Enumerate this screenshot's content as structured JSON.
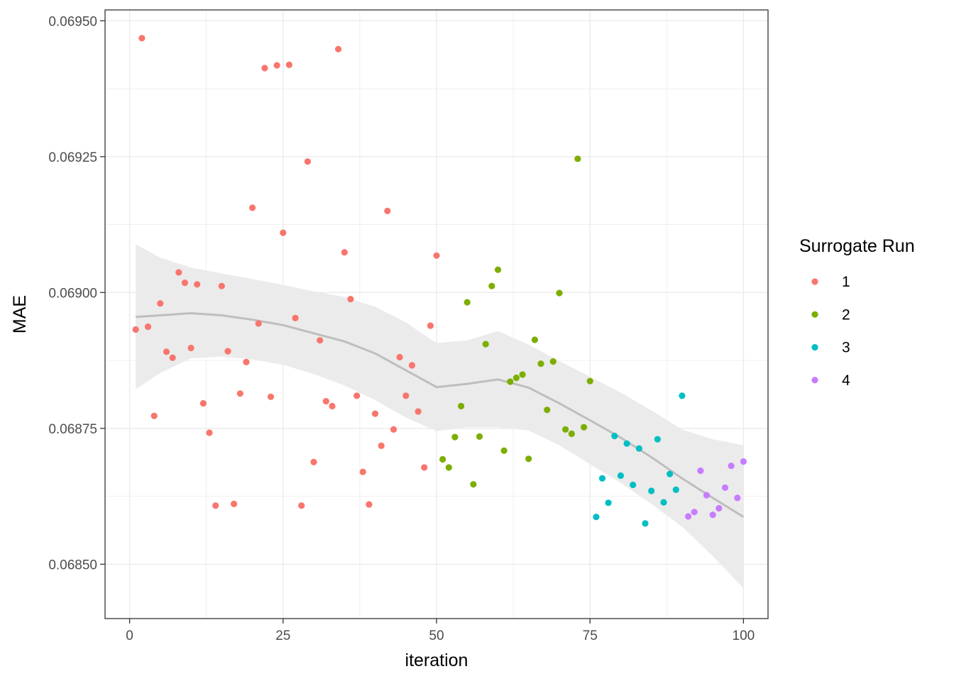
{
  "chart_data": {
    "type": "scatter",
    "xlabel": "iteration",
    "ylabel": "MAE",
    "xlim": [
      -4,
      104
    ],
    "ylim": [
      0.0684,
      0.06952
    ],
    "x_ticks": [
      0,
      25,
      50,
      75,
      100
    ],
    "x_tick_labels": [
      "0",
      "25",
      "50",
      "75",
      "100"
    ],
    "y_ticks": [
      0.0685,
      0.06875,
      0.069,
      0.06925,
      0.0695
    ],
    "y_tick_labels": [
      "0.06850",
      "0.06875",
      "0.06900",
      "0.06925",
      "0.06950"
    ],
    "grid": true,
    "legend": {
      "title": "Surrogate Run",
      "position": "right",
      "entries": [
        {
          "label": "1",
          "color": "#F8766D"
        },
        {
          "label": "2",
          "color": "#7CAE00"
        },
        {
          "label": "3",
          "color": "#00BFC4"
        },
        {
          "label": "4",
          "color": "#C77CFF"
        }
      ]
    },
    "series": [
      {
        "name": "1",
        "color": "#F8766D",
        "points": [
          [
            1,
            0.068932
          ],
          [
            2,
            0.069468
          ],
          [
            3,
            0.068937
          ],
          [
            4,
            0.068773
          ],
          [
            5,
            0.06898
          ],
          [
            6,
            0.068891
          ],
          [
            7,
            0.06888
          ],
          [
            8,
            0.069037
          ],
          [
            9,
            0.069018
          ],
          [
            10,
            0.068898
          ],
          [
            11,
            0.069015
          ],
          [
            12,
            0.068796
          ],
          [
            13,
            0.068742
          ],
          [
            14,
            0.068608
          ],
          [
            15,
            0.069012
          ],
          [
            16,
            0.068892
          ],
          [
            17,
            0.068611
          ],
          [
            18,
            0.068814
          ],
          [
            19,
            0.068872
          ],
          [
            20,
            0.069156
          ],
          [
            21,
            0.068943
          ],
          [
            22,
            0.069413
          ],
          [
            23,
            0.068808
          ],
          [
            24,
            0.069418
          ],
          [
            25,
            0.06911
          ],
          [
            26,
            0.069419
          ],
          [
            27,
            0.068953
          ],
          [
            28,
            0.068608
          ],
          [
            29,
            0.069241
          ],
          [
            30,
            0.068688
          ],
          [
            31,
            0.068912
          ],
          [
            32,
            0.0688
          ],
          [
            33,
            0.068791
          ],
          [
            34,
            0.069448
          ],
          [
            35,
            0.069074
          ],
          [
            36,
            0.068988
          ],
          [
            37,
            0.06881
          ],
          [
            38,
            0.06867
          ],
          [
            39,
            0.06861
          ],
          [
            40,
            0.068777
          ],
          [
            41,
            0.068718
          ],
          [
            42,
            0.06915
          ],
          [
            43,
            0.068748
          ],
          [
            44,
            0.068881
          ],
          [
            45,
            0.06881
          ],
          [
            46,
            0.068866
          ],
          [
            47,
            0.068781
          ],
          [
            48,
            0.068678
          ],
          [
            49,
            0.068939
          ],
          [
            50,
            0.069068
          ]
        ]
      },
      {
        "name": "2",
        "color": "#7CAE00",
        "points": [
          [
            51,
            0.068693
          ],
          [
            52,
            0.068678
          ],
          [
            53,
            0.068734
          ],
          [
            54,
            0.068791
          ],
          [
            55,
            0.068982
          ],
          [
            56,
            0.068647
          ],
          [
            57,
            0.068735
          ],
          [
            58,
            0.068905
          ],
          [
            59,
            0.069012
          ],
          [
            60,
            0.069042
          ],
          [
            61,
            0.068709
          ],
          [
            62,
            0.068836
          ],
          [
            63,
            0.068843
          ],
          [
            64,
            0.068849
          ],
          [
            65,
            0.068694
          ],
          [
            66,
            0.068913
          ],
          [
            67,
            0.068869
          ],
          [
            68,
            0.068784
          ],
          [
            69,
            0.068873
          ],
          [
            70,
            0.068999
          ],
          [
            71,
            0.068748
          ],
          [
            72,
            0.06874
          ],
          [
            73,
            0.069246
          ],
          [
            74,
            0.068752
          ],
          [
            75,
            0.068837
          ]
        ]
      },
      {
        "name": "3",
        "color": "#00BFC4",
        "points": [
          [
            76,
            0.068587
          ],
          [
            77,
            0.068658
          ],
          [
            78,
            0.068613
          ],
          [
            79,
            0.068736
          ],
          [
            80,
            0.068663
          ],
          [
            81,
            0.068722
          ],
          [
            82,
            0.068646
          ],
          [
            83,
            0.068713
          ],
          [
            84,
            0.068575
          ],
          [
            85,
            0.068635
          ],
          [
            86,
            0.06873
          ],
          [
            87,
            0.068614
          ],
          [
            88,
            0.068666
          ],
          [
            89,
            0.068637
          ],
          [
            90,
            0.06881
          ]
        ]
      },
      {
        "name": "4",
        "color": "#C77CFF",
        "points": [
          [
            91,
            0.068588
          ],
          [
            92,
            0.068596
          ],
          [
            93,
            0.068672
          ],
          [
            94,
            0.068627
          ],
          [
            95,
            0.068591
          ],
          [
            96,
            0.068603
          ],
          [
            97,
            0.068641
          ],
          [
            98,
            0.068681
          ],
          [
            99,
            0.068622
          ],
          [
            100,
            0.068689
          ]
        ]
      }
    ],
    "smooth": {
      "method": "loess",
      "line_color": "#BEBEBE",
      "band_color": "#EBEBEB",
      "x": [
        1,
        5,
        10,
        15,
        20,
        25,
        30,
        35,
        40,
        45,
        50,
        55,
        60,
        65,
        70,
        75,
        80,
        85,
        90,
        95,
        100
      ],
      "y": [
        0.068955,
        0.068958,
        0.068962,
        0.068958,
        0.06895,
        0.06894,
        0.068925,
        0.06891,
        0.068888,
        0.068857,
        0.068826,
        0.068832,
        0.06884,
        0.068825,
        0.068796,
        0.068765,
        0.068733,
        0.068697,
        0.068658,
        0.068622,
        0.068587
      ],
      "lower": [
        0.068822,
        0.068852,
        0.068879,
        0.068882,
        0.068877,
        0.068867,
        0.06885,
        0.068829,
        0.068802,
        0.06877,
        0.068745,
        0.068752,
        0.068752,
        0.068746,
        0.068719,
        0.068684,
        0.06865,
        0.068611,
        0.068569,
        0.068515,
        0.068456
      ],
      "upper": [
        0.069089,
        0.069064,
        0.069046,
        0.069035,
        0.069025,
        0.069014,
        0.069002,
        0.068992,
        0.068974,
        0.068945,
        0.068907,
        0.068912,
        0.068929,
        0.068904,
        0.068874,
        0.068845,
        0.068816,
        0.068783,
        0.068748,
        0.06873,
        0.068719
      ]
    }
  }
}
